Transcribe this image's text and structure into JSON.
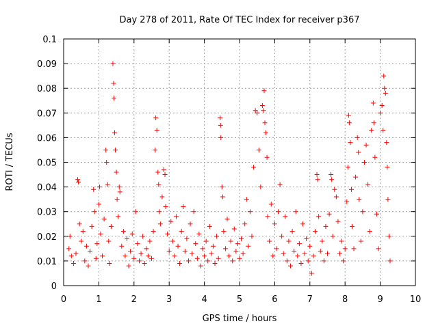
{
  "chart_data": {
    "type": "scatter",
    "title": "Day 278 of 2011, Rate Of TEC Index for receiver p367",
    "xlabel": "GPS time / hours",
    "ylabel": "ROTI / TECUs",
    "xlim": [
      0,
      10
    ],
    "ylim": [
      0,
      0.1
    ],
    "x_ticks": [
      0,
      1,
      2,
      3,
      4,
      5,
      6,
      7,
      8,
      9,
      10
    ],
    "y_ticks": [
      0,
      0.01,
      0.02,
      0.03,
      0.04,
      0.05,
      0.06,
      0.07,
      0.08,
      0.09,
      0.1
    ],
    "x_tick_labels": [
      "0",
      "1",
      "2",
      "3",
      "4",
      "5",
      "6",
      "7",
      "8",
      "9",
      "10"
    ],
    "y_tick_labels": [
      "0",
      "0.01",
      "0.02",
      "0.03",
      "0.04",
      "0.05",
      "0.06",
      "0.07",
      "0.08",
      "0.09",
      "0.1"
    ],
    "grid": true,
    "marker": "+",
    "color": "#ff0000",
    "series": [
      {
        "name": "ROTI",
        "points": [
          [
            0.15,
            0.015
          ],
          [
            0.18,
            0.02
          ],
          [
            0.22,
            0.012
          ],
          [
            0.28,
            0.009
          ],
          [
            0.35,
            0.013
          ],
          [
            0.4,
            0.043
          ],
          [
            0.42,
            0.042
          ],
          [
            0.45,
            0.025
          ],
          [
            0.5,
            0.018
          ],
          [
            0.55,
            0.022
          ],
          [
            0.6,
            0.01
          ],
          [
            0.65,
            0.016
          ],
          [
            0.7,
            0.008
          ],
          [
            0.75,
            0.014
          ],
          [
            0.8,
            0.024
          ],
          [
            0.85,
            0.039
          ],
          [
            0.88,
            0.03
          ],
          [
            0.92,
            0.011
          ],
          [
            0.95,
            0.017
          ],
          [
            1.0,
            0.033
          ],
          [
            1.02,
            0.04
          ],
          [
            1.05,
            0.021
          ],
          [
            1.1,
            0.012
          ],
          [
            1.15,
            0.027
          ],
          [
            1.2,
            0.055
          ],
          [
            1.22,
            0.05
          ],
          [
            1.25,
            0.041
          ],
          [
            1.28,
            0.018
          ],
          [
            1.3,
            0.009
          ],
          [
            1.35,
            0.024
          ],
          [
            1.4,
            0.09
          ],
          [
            1.42,
            0.082
          ],
          [
            1.43,
            0.076
          ],
          [
            1.45,
            0.062
          ],
          [
            1.47,
            0.055
          ],
          [
            1.5,
            0.046
          ],
          [
            1.52,
            0.035
          ],
          [
            1.55,
            0.028
          ],
          [
            1.58,
            0.04
          ],
          [
            1.6,
            0.038
          ],
          [
            1.65,
            0.016
          ],
          [
            1.7,
            0.022
          ],
          [
            1.75,
            0.012
          ],
          [
            1.8,
            0.019
          ],
          [
            1.85,
            0.008
          ],
          [
            1.9,
            0.014
          ],
          [
            1.95,
            0.021
          ],
          [
            2.0,
            0.011
          ],
          [
            2.05,
            0.03
          ],
          [
            2.1,
            0.017
          ],
          [
            2.15,
            0.01
          ],
          [
            2.2,
            0.013
          ],
          [
            2.25,
            0.02
          ],
          [
            2.3,
            0.009
          ],
          [
            2.35,
            0.015
          ],
          [
            2.4,
            0.012
          ],
          [
            2.45,
            0.018
          ],
          [
            2.5,
            0.011
          ],
          [
            2.55,
            0.022
          ],
          [
            2.6,
            0.055
          ],
          [
            2.62,
            0.068
          ],
          [
            2.65,
            0.063
          ],
          [
            2.68,
            0.046
          ],
          [
            2.7,
            0.041
          ],
          [
            2.72,
            0.03
          ],
          [
            2.75,
            0.025
          ],
          [
            2.8,
            0.036
          ],
          [
            2.85,
            0.047
          ],
          [
            2.88,
            0.045
          ],
          [
            2.9,
            0.032
          ],
          [
            2.95,
            0.021
          ],
          [
            3.0,
            0.014
          ],
          [
            3.05,
            0.026
          ],
          [
            3.1,
            0.018
          ],
          [
            3.15,
            0.012
          ],
          [
            3.2,
            0.028
          ],
          [
            3.25,
            0.016
          ],
          [
            3.3,
            0.009
          ],
          [
            3.35,
            0.022
          ],
          [
            3.4,
            0.032
          ],
          [
            3.45,
            0.014
          ],
          [
            3.5,
            0.019
          ],
          [
            3.55,
            0.01
          ],
          [
            3.6,
            0.025
          ],
          [
            3.65,
            0.013
          ],
          [
            3.7,
            0.03
          ],
          [
            3.75,
            0.017
          ],
          [
            3.8,
            0.011
          ],
          [
            3.85,
            0.021
          ],
          [
            3.9,
            0.008
          ],
          [
            3.95,
            0.015
          ],
          [
            4.0,
            0.012
          ],
          [
            4.05,
            0.018
          ],
          [
            4.1,
            0.01
          ],
          [
            4.15,
            0.024
          ],
          [
            4.2,
            0.013
          ],
          [
            4.25,
            0.016
          ],
          [
            4.3,
            0.009
          ],
          [
            4.35,
            0.02
          ],
          [
            4.4,
            0.011
          ],
          [
            4.45,
            0.068
          ],
          [
            4.46,
            0.065
          ],
          [
            4.47,
            0.06
          ],
          [
            4.5,
            0.04
          ],
          [
            4.52,
            0.036
          ],
          [
            4.55,
            0.022
          ],
          [
            4.6,
            0.015
          ],
          [
            4.65,
            0.027
          ],
          [
            4.7,
            0.012
          ],
          [
            4.75,
            0.018
          ],
          [
            4.8,
            0.01
          ],
          [
            4.85,
            0.023
          ],
          [
            4.9,
            0.014
          ],
          [
            4.95,
            0.017
          ],
          [
            5.0,
            0.011
          ],
          [
            5.05,
            0.019
          ],
          [
            5.1,
            0.013
          ],
          [
            5.15,
            0.025
          ],
          [
            5.2,
            0.035
          ],
          [
            5.25,
            0.016
          ],
          [
            5.3,
            0.03
          ],
          [
            5.35,
            0.02
          ],
          [
            5.4,
            0.048
          ],
          [
            5.45,
            0.071
          ],
          [
            5.5,
            0.07
          ],
          [
            5.55,
            0.055
          ],
          [
            5.6,
            0.04
          ],
          [
            5.65,
            0.073
          ],
          [
            5.68,
            0.071
          ],
          [
            5.7,
            0.079
          ],
          [
            5.72,
            0.066
          ],
          [
            5.75,
            0.062
          ],
          [
            5.78,
            0.052
          ],
          [
            5.8,
            0.028
          ],
          [
            5.85,
            0.018
          ],
          [
            5.9,
            0.033
          ],
          [
            5.95,
            0.012
          ],
          [
            6.0,
            0.025
          ],
          [
            6.05,
            0.015
          ],
          [
            6.1,
            0.03
          ],
          [
            6.15,
            0.041
          ],
          [
            6.2,
            0.02
          ],
          [
            6.25,
            0.013
          ],
          [
            6.3,
            0.028
          ],
          [
            6.35,
            0.01
          ],
          [
            6.4,
            0.018
          ],
          [
            6.45,
            0.008
          ],
          [
            6.5,
            0.022
          ],
          [
            6.55,
            0.014
          ],
          [
            6.6,
            0.03
          ],
          [
            6.65,
            0.012
          ],
          [
            6.7,
            0.017
          ],
          [
            6.75,
            0.009
          ],
          [
            6.8,
            0.025
          ],
          [
            6.85,
            0.013
          ],
          [
            6.9,
            0.019
          ],
          [
            6.95,
            0.01
          ],
          [
            7.0,
            0.016
          ],
          [
            7.05,
            0.005
          ],
          [
            7.1,
            0.012
          ],
          [
            7.15,
            0.022
          ],
          [
            7.2,
            0.045
          ],
          [
            7.22,
            0.043
          ],
          [
            7.25,
            0.028
          ],
          [
            7.3,
            0.014
          ],
          [
            7.35,
            0.018
          ],
          [
            7.4,
            0.01
          ],
          [
            7.45,
            0.024
          ],
          [
            7.5,
            0.013
          ],
          [
            7.55,
            0.029
          ],
          [
            7.6,
            0.045
          ],
          [
            7.62,
            0.043
          ],
          [
            7.65,
            0.02
          ],
          [
            7.7,
            0.039
          ],
          [
            7.75,
            0.036
          ],
          [
            7.8,
            0.026
          ],
          [
            7.85,
            0.013
          ],
          [
            7.9,
            0.018
          ],
          [
            7.95,
            0.01
          ],
          [
            8.0,
            0.015
          ],
          [
            8.05,
            0.034
          ],
          [
            8.08,
            0.048
          ],
          [
            8.1,
            0.069
          ],
          [
            8.12,
            0.066
          ],
          [
            8.15,
            0.058
          ],
          [
            8.18,
            0.039
          ],
          [
            8.2,
            0.024
          ],
          [
            8.25,
            0.015
          ],
          [
            8.3,
            0.044
          ],
          [
            8.35,
            0.06
          ],
          [
            8.38,
            0.054
          ],
          [
            8.4,
            0.035
          ],
          [
            8.45,
            0.018
          ],
          [
            8.5,
            0.03
          ],
          [
            8.55,
            0.05
          ],
          [
            8.6,
            0.057
          ],
          [
            8.65,
            0.041
          ],
          [
            8.7,
            0.022
          ],
          [
            8.75,
            0.063
          ],
          [
            8.8,
            0.074
          ],
          [
            8.82,
            0.066
          ],
          [
            8.85,
            0.052
          ],
          [
            8.9,
            0.029
          ],
          [
            8.95,
            0.015
          ],
          [
            9.0,
            0.07
          ],
          [
            9.05,
            0.073
          ],
          [
            9.08,
            0.063
          ],
          [
            9.1,
            0.085
          ],
          [
            9.12,
            0.08
          ],
          [
            9.15,
            0.078
          ],
          [
            9.18,
            0.058
          ],
          [
            9.2,
            0.048
          ],
          [
            9.22,
            0.035
          ],
          [
            9.25,
            0.02
          ],
          [
            9.28,
            0.01
          ]
        ]
      }
    ]
  }
}
